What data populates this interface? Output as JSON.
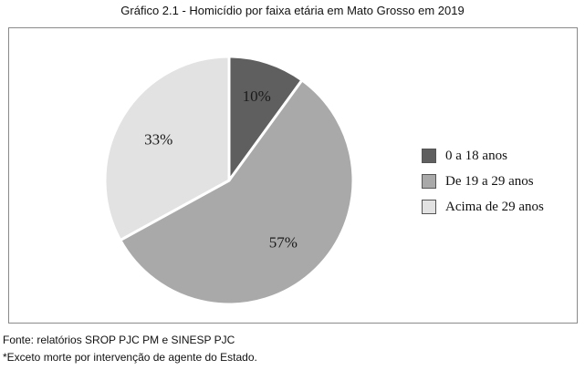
{
  "title": "Gráfico 2.1 - Homicídio por faixa etária em Mato Grosso em 2019",
  "chart_data": {
    "type": "pie",
    "title": "Gráfico 2.1 - Homicídio por faixa etária em Mato Grosso em 2019",
    "categories": [
      "0 a 18 anos",
      "De 19 a 29 anos",
      "Acima de 29 anos"
    ],
    "values": [
      10,
      57,
      33
    ],
    "labels": [
      "10%",
      "57%",
      "33%"
    ],
    "colors": [
      "#5f5f5f",
      "#a9a9a9",
      "#e2e2e2"
    ],
    "legend_position": "right"
  },
  "footer": {
    "source": "Fonte: relatórios SROP PJC PM e SINESP PJC",
    "note": "*Exceto morte por intervenção de agente do Estado."
  }
}
